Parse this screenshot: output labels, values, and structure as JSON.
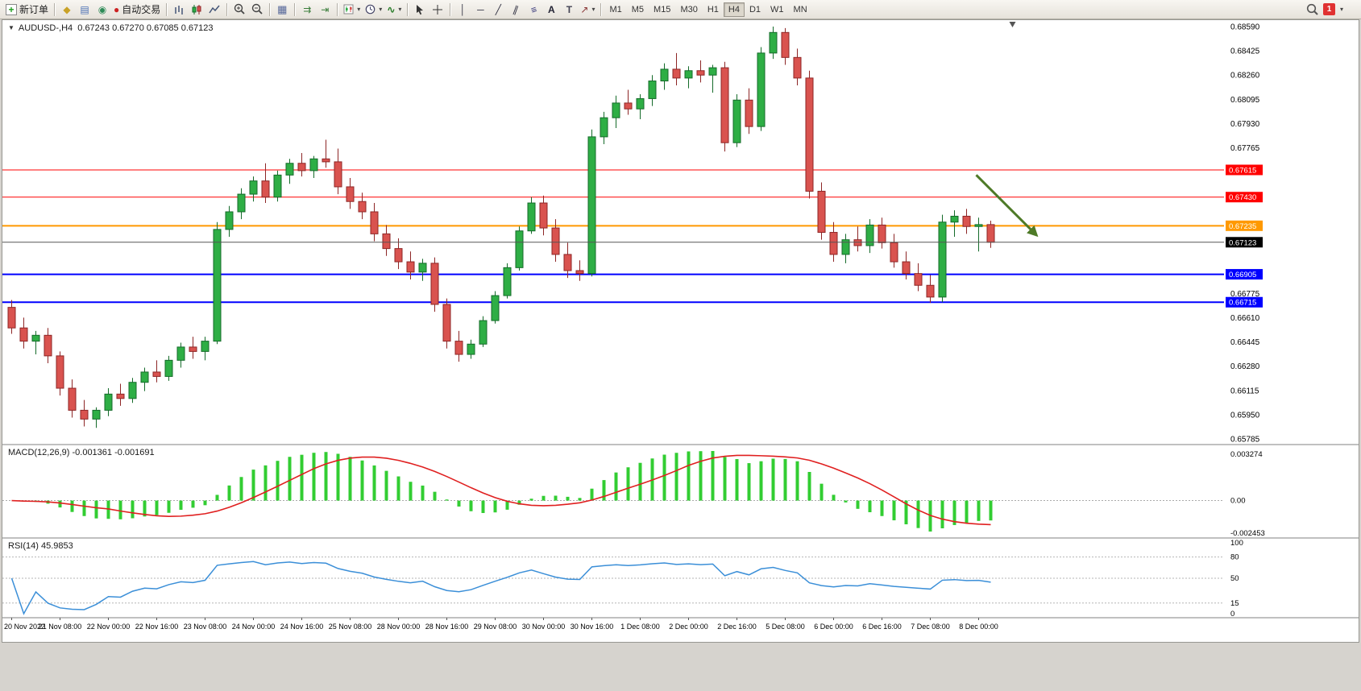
{
  "toolbar": {
    "new_order_label": "新订单",
    "autotrading_label": "自动交易",
    "timeframes": [
      "M1",
      "M5",
      "M15",
      "M30",
      "H1",
      "H4",
      "D1",
      "W1",
      "MN"
    ],
    "active_timeframe": "H4",
    "notification_count": "1"
  },
  "icons": {
    "new_order": "+",
    "market_watch": "◆",
    "data_window": "▤",
    "navigator": "◉",
    "autotrading": "●",
    "auto_scroll": "⇉",
    "chart_shift": "⇥",
    "dropdown_caret": "▾",
    "vline": "│",
    "hline": "─",
    "trendline": "╱",
    "channel": "∥",
    "fibonacci": "≡",
    "text": "A",
    "label": "T",
    "arrows": "↗",
    "indicators": "∿",
    "one_click": "▼"
  },
  "chart": {
    "title": "AUDUSD-,H4",
    "ohlc": {
      "open": "0.67243",
      "high": "0.67270",
      "low": "0.67085",
      "close": "0.67123"
    }
  },
  "macd": {
    "label": "MACD(12,26,9)",
    "value_main": "-0.001361",
    "value_signal": "-0.001691",
    "axis_labels": [
      "0.003274",
      "0.00",
      "-0.002453"
    ],
    "colors": {
      "histogram": "#32CD32",
      "signal": "#E02020"
    }
  },
  "rsi": {
    "label": "RSI(14)",
    "value": "45.9853",
    "period": 14,
    "levels": [
      80,
      50,
      15
    ],
    "axis_labels": [
      "100",
      "80",
      "50",
      "15",
      "0"
    ],
    "color": "#3B8FD8"
  },
  "chart_data": {
    "type": "candlestick",
    "symbol": "AUDUSD",
    "period": "H4",
    "y_axis": {
      "min": 0.65785,
      "max": 0.6859,
      "ticks": [
        0.6859,
        0.68425,
        0.6826,
        0.68095,
        0.6793,
        0.67765,
        0.676,
        0.67435,
        0.6727,
        0.67105,
        0.6694,
        0.66775,
        0.6661,
        0.66445,
        0.6628,
        0.66115,
        0.6595,
        0.65785
      ]
    },
    "x_axis": {
      "bars_per_label": 4,
      "labels": [
        "20 Nov 2022",
        "21 Nov 08:00",
        "22 Nov 00:00",
        "22 Nov 16:00",
        "23 Nov 08:00",
        "24 Nov 00:00",
        "24 Nov 16:00",
        "25 Nov 08:00",
        "28 Nov 00:00",
        "28 Nov 16:00",
        "29 Nov 08:00",
        "30 Nov 00:00",
        "30 Nov 16:00",
        "1 Dec 08:00",
        "2 Dec 00:00",
        "2 Dec 16:00",
        "5 Dec 08:00",
        "6 Dec 00:00",
        "6 Dec 16:00",
        "7 Dec 08:00",
        "8 Dec 00:00"
      ]
    },
    "hlines": [
      {
        "price": 0.67615,
        "color": "#FF0000",
        "width": 1
      },
      {
        "price": 0.6743,
        "color": "#FF0000",
        "width": 1
      },
      {
        "price": 0.67235,
        "color": "#FF9900",
        "width": 2
      },
      {
        "price": 0.66905,
        "color": "#0000FF",
        "width": 2
      },
      {
        "price": 0.66715,
        "color": "#0000FF",
        "width": 2
      }
    ],
    "current_price": {
      "value": 0.67123,
      "label": "0.67123",
      "color": "#000000"
    },
    "arrow_annotation": {
      "from_bar": 79.8,
      "from_price": 0.6758,
      "to_bar": 84.8,
      "to_price": 0.6717,
      "color": "#4E7A27"
    },
    "colors": {
      "up": "#2EAE45",
      "up_border": "#156B2A",
      "down": "#D9534F",
      "down_border": "#8D2626",
      "background": "#FFFFFF"
    },
    "candles": [
      [
        0.6668,
        0.6673,
        0.665,
        0.6654
      ],
      [
        0.6654,
        0.6661,
        0.664,
        0.6645
      ],
      [
        0.6645,
        0.6652,
        0.6636,
        0.6649
      ],
      [
        0.6649,
        0.6654,
        0.663,
        0.6635
      ],
      [
        0.6635,
        0.6638,
        0.6608,
        0.6613
      ],
      [
        0.6613,
        0.6619,
        0.6593,
        0.6598
      ],
      [
        0.6598,
        0.6605,
        0.6587,
        0.6592
      ],
      [
        0.6592,
        0.66,
        0.6586,
        0.6598
      ],
      [
        0.6598,
        0.6613,
        0.6594,
        0.6609
      ],
      [
        0.6609,
        0.6616,
        0.6601,
        0.6606
      ],
      [
        0.6606,
        0.662,
        0.6603,
        0.6617
      ],
      [
        0.6617,
        0.6627,
        0.6611,
        0.6624
      ],
      [
        0.6624,
        0.6632,
        0.6617,
        0.6621
      ],
      [
        0.6621,
        0.6635,
        0.6618,
        0.6632
      ],
      [
        0.6632,
        0.6644,
        0.6627,
        0.6641
      ],
      [
        0.6641,
        0.6648,
        0.6633,
        0.6638
      ],
      [
        0.6638,
        0.6648,
        0.6632,
        0.6645
      ],
      [
        0.6645,
        0.6726,
        0.6643,
        0.6721
      ],
      [
        0.6721,
        0.6737,
        0.6716,
        0.6733
      ],
      [
        0.6733,
        0.6749,
        0.6728,
        0.6745
      ],
      [
        0.6745,
        0.6757,
        0.674,
        0.6754
      ],
      [
        0.6754,
        0.6766,
        0.6739,
        0.6743
      ],
      [
        0.6743,
        0.6761,
        0.674,
        0.6758
      ],
      [
        0.6758,
        0.6769,
        0.6752,
        0.6766
      ],
      [
        0.6766,
        0.6773,
        0.6757,
        0.6761
      ],
      [
        0.6761,
        0.6771,
        0.6756,
        0.6769
      ],
      [
        0.6769,
        0.6782,
        0.6763,
        0.6767
      ],
      [
        0.6767,
        0.6776,
        0.6745,
        0.675
      ],
      [
        0.675,
        0.6756,
        0.6735,
        0.674
      ],
      [
        0.674,
        0.6746,
        0.6728,
        0.6733
      ],
      [
        0.6733,
        0.6739,
        0.6713,
        0.6718
      ],
      [
        0.6718,
        0.6724,
        0.6703,
        0.6708
      ],
      [
        0.6708,
        0.6715,
        0.6694,
        0.6699
      ],
      [
        0.6699,
        0.6706,
        0.6687,
        0.6692
      ],
      [
        0.6692,
        0.6701,
        0.6686,
        0.6698
      ],
      [
        0.6698,
        0.6702,
        0.6665,
        0.667
      ],
      [
        0.667,
        0.6674,
        0.664,
        0.6645
      ],
      [
        0.6645,
        0.6652,
        0.6631,
        0.6636
      ],
      [
        0.6636,
        0.6646,
        0.6633,
        0.6643
      ],
      [
        0.6643,
        0.6662,
        0.6641,
        0.6659
      ],
      [
        0.6659,
        0.6679,
        0.6657,
        0.6676
      ],
      [
        0.6676,
        0.6698,
        0.6674,
        0.6695
      ],
      [
        0.6695,
        0.6723,
        0.6693,
        0.672
      ],
      [
        0.672,
        0.6743,
        0.6718,
        0.6739
      ],
      [
        0.6739,
        0.6744,
        0.6717,
        0.6722
      ],
      [
        0.6722,
        0.6728,
        0.6699,
        0.6704
      ],
      [
        0.6704,
        0.6712,
        0.6688,
        0.6693
      ],
      [
        0.6693,
        0.67,
        0.6686,
        0.6691
      ],
      [
        0.6691,
        0.6789,
        0.6689,
        0.6784
      ],
      [
        0.6784,
        0.6801,
        0.6779,
        0.6797
      ],
      [
        0.6797,
        0.6812,
        0.679,
        0.6807
      ],
      [
        0.6807,
        0.6816,
        0.6799,
        0.6803
      ],
      [
        0.6803,
        0.6813,
        0.6796,
        0.681
      ],
      [
        0.681,
        0.6826,
        0.6805,
        0.6822
      ],
      [
        0.6822,
        0.6834,
        0.6816,
        0.683
      ],
      [
        0.683,
        0.6841,
        0.6819,
        0.6824
      ],
      [
        0.6824,
        0.6832,
        0.6817,
        0.6829
      ],
      [
        0.6829,
        0.6836,
        0.6821,
        0.6826
      ],
      [
        0.6826,
        0.6833,
        0.6814,
        0.6831
      ],
      [
        0.6831,
        0.6835,
        0.6774,
        0.678
      ],
      [
        0.678,
        0.6813,
        0.6777,
        0.6809
      ],
      [
        0.6809,
        0.6817,
        0.6786,
        0.6791
      ],
      [
        0.6791,
        0.6845,
        0.6788,
        0.6841
      ],
      [
        0.6841,
        0.6859,
        0.6837,
        0.6855
      ],
      [
        0.6855,
        0.6858,
        0.6833,
        0.6838
      ],
      [
        0.6838,
        0.6844,
        0.6819,
        0.6824
      ],
      [
        0.6824,
        0.6829,
        0.6742,
        0.6747
      ],
      [
        0.6747,
        0.6753,
        0.6714,
        0.6719
      ],
      [
        0.6719,
        0.6726,
        0.6699,
        0.6704
      ],
      [
        0.6704,
        0.6718,
        0.6698,
        0.6714
      ],
      [
        0.6714,
        0.6723,
        0.6706,
        0.671
      ],
      [
        0.671,
        0.6728,
        0.6705,
        0.6724
      ],
      [
        0.6724,
        0.6729,
        0.6708,
        0.6712
      ],
      [
        0.6712,
        0.6718,
        0.6695,
        0.6699
      ],
      [
        0.6699,
        0.6706,
        0.6687,
        0.6691
      ],
      [
        0.6691,
        0.6698,
        0.6679,
        0.6683
      ],
      [
        0.6683,
        0.669,
        0.6671,
        0.6675
      ],
      [
        0.6675,
        0.6731,
        0.66715,
        0.6726
      ],
      [
        0.6726,
        0.6734,
        0.6716,
        0.673
      ],
      [
        0.673,
        0.6735,
        0.6718,
        0.6723
      ],
      [
        0.6723,
        0.6729,
        0.6706,
        0.67243
      ],
      [
        0.67243,
        0.6727,
        0.67085,
        0.67123
      ]
    ]
  }
}
